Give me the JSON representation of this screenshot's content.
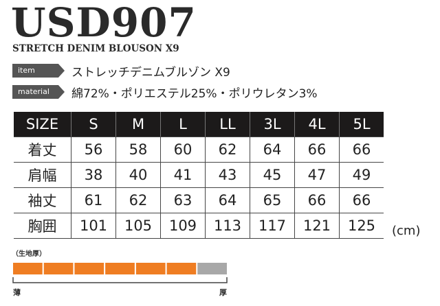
{
  "header": {
    "title": "USD907",
    "subtitle": "STRETCH DENIM BLOUSON X9"
  },
  "specs": [
    {
      "label": "item",
      "text": "ストレッチデニムブルゾン X9"
    },
    {
      "label": "material",
      "text": "綿72%・ポリエステル25%・ポリウレタン3%"
    }
  ],
  "table": {
    "header": [
      "SIZE",
      "S",
      "M",
      "L",
      "LL",
      "3L",
      "4L",
      "5L"
    ],
    "rows": [
      [
        "着丈",
        56,
        58,
        60,
        62,
        64,
        66,
        66
      ],
      [
        "肩幅",
        38,
        40,
        41,
        43,
        45,
        47,
        49
      ],
      [
        "袖丈",
        61,
        62,
        63,
        64,
        65,
        66,
        66
      ],
      [
        "胸囲",
        101,
        105,
        109,
        113,
        117,
        121,
        125
      ]
    ],
    "unit": "(cm)"
  },
  "thickness": {
    "label": "（生地厚）",
    "thin": "薄",
    "thick": "厚",
    "level": 6,
    "segments": 7
  }
}
